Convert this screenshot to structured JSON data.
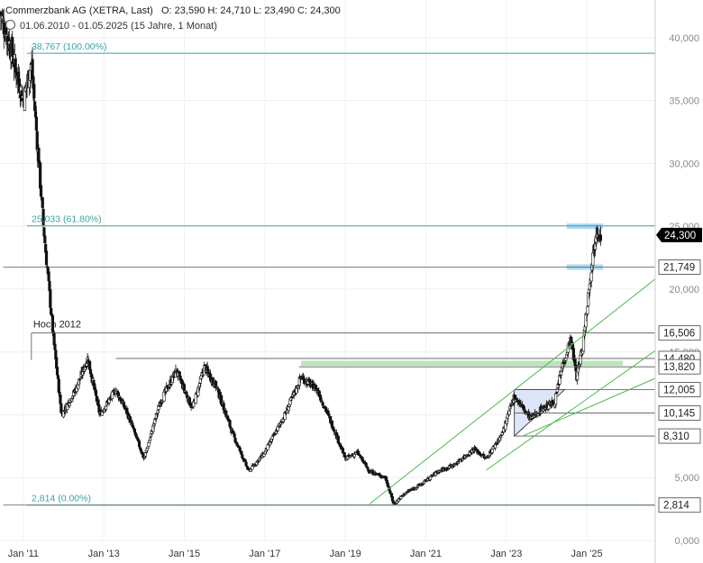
{
  "header": {
    "title": "Commerzbank AG (XETRA, Last)",
    "ohlc": "O: 23,590   H: 24,710   L: 23,490   C: 24,300",
    "range": "01.06.2010 - 01.05.2025   (15 Jahre, 1 Monat)"
  },
  "chart_data": {
    "type": "candlestick",
    "x_tick_labels": [
      "Jan '11",
      "Jan '13",
      "Jan '15",
      "Jan '17",
      "Jan '19",
      "Jan '21",
      "Jan '23",
      "Jan '25"
    ],
    "x_tick_years": [
      2011,
      2013,
      2015,
      2017,
      2019,
      2021,
      2023,
      2025
    ],
    "x_range": [
      2010.42,
      2026.7
    ],
    "y_tick_labels": [
      "0,000",
      "5,000",
      "10,000",
      "15,000",
      "20,000",
      "25,000",
      "30,000",
      "35,000",
      "40,000"
    ],
    "y_ticks": [
      0,
      5,
      10,
      15,
      20,
      25,
      30,
      35,
      40
    ],
    "y_range": [
      0,
      43
    ],
    "last_price": 24.3,
    "last_price_label": "24,300",
    "fibonacci": [
      {
        "value": 38.767,
        "label": "38,767 (100.00%)"
      },
      {
        "value": 25.033,
        "label": "25,033 (61.80%)"
      },
      {
        "value": 2.814,
        "label": "2,814 (0.00%)"
      }
    ],
    "horizontal_levels": [
      {
        "value": 21.749,
        "label": "21,749",
        "start": 2010.5
      },
      {
        "value": 16.506,
        "label": "16,506",
        "start": 2011.2
      },
      {
        "value": 14.48,
        "label": "14,480",
        "start": 2013.3
      },
      {
        "value": 13.82,
        "label": "13,820",
        "start": 2017.85
      },
      {
        "value": 12.005,
        "label": "12,005",
        "start": 2023.2
      },
      {
        "value": 10.145,
        "label": "10,145",
        "start": 2023.2
      },
      {
        "value": 8.31,
        "label": "8,310",
        "start": 2023.2
      },
      {
        "value": 2.814,
        "label": "2,814",
        "start": 2010.5
      }
    ],
    "annotation": {
      "text": "Hoch 2012",
      "year": 2011.2,
      "value": 16.506
    },
    "colors": {
      "up": "#ffffff",
      "down": "#111111",
      "fib": "#3aa3a3",
      "trend": "#4fb84f",
      "zone": "#aad8f5",
      "support_zone": "#b9e6b9",
      "triangle": "#dde6f8"
    },
    "trendlines": [
      {
        "from": [
          2019.6,
          2.9
        ],
        "to": [
          2026.7,
          20.8
        ]
      },
      {
        "from": [
          2022.5,
          5.6
        ],
        "to": [
          2026.7,
          15.1
        ]
      },
      {
        "from": [
          2023.4,
          8.3
        ],
        "to": [
          2026.7,
          12.9
        ]
      }
    ],
    "support_zone": {
      "from": 2017.9,
      "to": 2025.9,
      "low": 13.9,
      "high": 14.3
    },
    "resistance_zones": [
      {
        "from": 2024.5,
        "to": 2025.4,
        "value": 25.0
      },
      {
        "from": 2024.5,
        "to": 2025.4,
        "value": 21.75
      }
    ],
    "triangle": [
      [
        2023.2,
        12.0
      ],
      [
        2023.2,
        8.31
      ],
      [
        2024.45,
        12.0
      ]
    ],
    "anchors": [
      [
        2010.42,
        42
      ],
      [
        2010.7,
        39
      ],
      [
        2011.0,
        35
      ],
      [
        2011.2,
        38
      ],
      [
        2011.5,
        25
      ],
      [
        2011.75,
        16
      ],
      [
        2011.95,
        10
      ],
      [
        2012.3,
        12
      ],
      [
        2012.6,
        14.5
      ],
      [
        2012.9,
        10
      ],
      [
        2013.3,
        12
      ],
      [
        2013.6,
        10
      ],
      [
        2014.0,
        6.5
      ],
      [
        2014.4,
        11
      ],
      [
        2014.8,
        13.5
      ],
      [
        2015.2,
        10.5
      ],
      [
        2015.5,
        13.8
      ],
      [
        2015.8,
        12.2
      ],
      [
        2016.2,
        8.5
      ],
      [
        2016.6,
        5.5
      ],
      [
        2017.0,
        7
      ],
      [
        2017.5,
        10
      ],
      [
        2017.9,
        13
      ],
      [
        2018.3,
        12
      ],
      [
        2018.7,
        9
      ],
      [
        2019.0,
        6.5
      ],
      [
        2019.3,
        7
      ],
      [
        2019.6,
        5.5
      ],
      [
        2020.0,
        5
      ],
      [
        2020.2,
        2.9
      ],
      [
        2020.5,
        3.8
      ],
      [
        2020.9,
        4.5
      ],
      [
        2021.3,
        5.5
      ],
      [
        2021.7,
        6
      ],
      [
        2022.2,
        7.3
      ],
      [
        2022.5,
        6.5
      ],
      [
        2022.9,
        8.5
      ],
      [
        2023.2,
        11.5
      ],
      [
        2023.6,
        9.7
      ],
      [
        2023.9,
        10.5
      ],
      [
        2024.2,
        11
      ],
      [
        2024.4,
        14
      ],
      [
        2024.6,
        16
      ],
      [
        2024.75,
        13
      ],
      [
        2024.9,
        15.5
      ],
      [
        2025.0,
        18.5
      ],
      [
        2025.1,
        21.5
      ],
      [
        2025.25,
        25
      ],
      [
        2025.35,
        24.3
      ]
    ]
  }
}
